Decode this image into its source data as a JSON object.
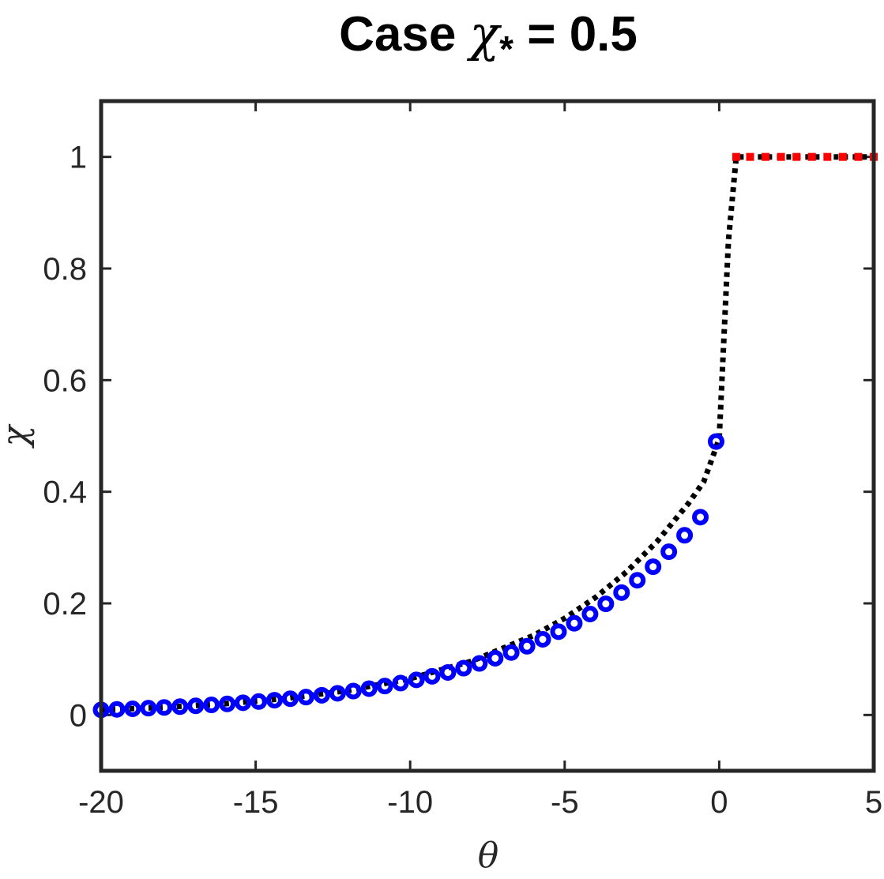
{
  "chart_data": {
    "type": "scatter",
    "title": {
      "prefix": "Case ",
      "symbol": "χ",
      "subscript": "*",
      "suffix": " = 0.5"
    },
    "xlabel": "θ",
    "ylabel": "χ",
    "xlim": [
      -20,
      5
    ],
    "ylim": [
      -0.1,
      1.1
    ],
    "xticks": [
      -20,
      -15,
      -10,
      -5,
      0,
      5
    ],
    "yticks": [
      0,
      0.2,
      0.4,
      0.6,
      0.8,
      1
    ],
    "xtick_labels": [
      "-20",
      "-15",
      "-10",
      "-5",
      "0",
      "5"
    ],
    "ytick_labels": [
      "0",
      "0.2",
      "0.4",
      "0.6",
      "0.8",
      "1"
    ],
    "grid": false,
    "colors": {
      "axes": "#262626",
      "left_markers": "#0000ff",
      "right_markers": "#ff0000",
      "curve": "#000000"
    },
    "series": [
      {
        "role": "dotted-curve",
        "style": "dotted",
        "x": [
          -20,
          -18,
          -16,
          -14,
          -12,
          -10,
          -8,
          -6,
          -5,
          -4,
          -3,
          -2,
          -1,
          -0.5,
          0,
          0.3,
          0.55,
          5
        ],
        "y": [
          0.0092,
          0.0137,
          0.0202,
          0.0298,
          0.0441,
          0.0653,
          0.0965,
          0.1427,
          0.1733,
          0.2108,
          0.2563,
          0.3116,
          0.3789,
          0.4179,
          0.495,
          0.85,
          1.0,
          1.0
        ]
      },
      {
        "role": "left-branch-markers",
        "marker": "circle",
        "x": [
          -20,
          -19.49,
          -18.98,
          -18.47,
          -17.96,
          -17.45,
          -16.94,
          -16.43,
          -15.92,
          -15.41,
          -14.9,
          -14.39,
          -13.88,
          -13.37,
          -12.86,
          -12.35,
          -11.84,
          -11.33,
          -10.82,
          -10.31,
          -9.8,
          -9.29,
          -8.78,
          -8.27,
          -7.76,
          -7.25,
          -6.73,
          -6.22,
          -5.71,
          -5.2,
          -4.69,
          -4.18,
          -3.67,
          -3.16,
          -2.65,
          -2.14,
          -1.63,
          -1.12,
          -0.61,
          -0.1
        ],
        "y": [
          0.0092,
          0.0101,
          0.0111,
          0.0123,
          0.0135,
          0.0149,
          0.0164,
          0.0181,
          0.0199,
          0.0219,
          0.0241,
          0.0265,
          0.0292,
          0.0321,
          0.0354,
          0.0389,
          0.0429,
          0.0472,
          0.0519,
          0.0572,
          0.0629,
          0.0693,
          0.0762,
          0.0839,
          0.0924,
          0.1017,
          0.1119,
          0.1232,
          0.1356,
          0.1493,
          0.1644,
          0.1809,
          0.1992,
          0.2193,
          0.2414,
          0.2657,
          0.2925,
          0.322,
          0.3545,
          0.49
        ]
      },
      {
        "role": "right-branch-markers",
        "marker": "square",
        "x": [
          0.55,
          1.0,
          1.5,
          2.0,
          2.5,
          3.0,
          3.5,
          4.0,
          4.5,
          5.0
        ],
        "y": [
          1,
          1,
          1,
          1,
          1,
          1,
          1,
          1,
          1,
          1
        ]
      }
    ]
  }
}
